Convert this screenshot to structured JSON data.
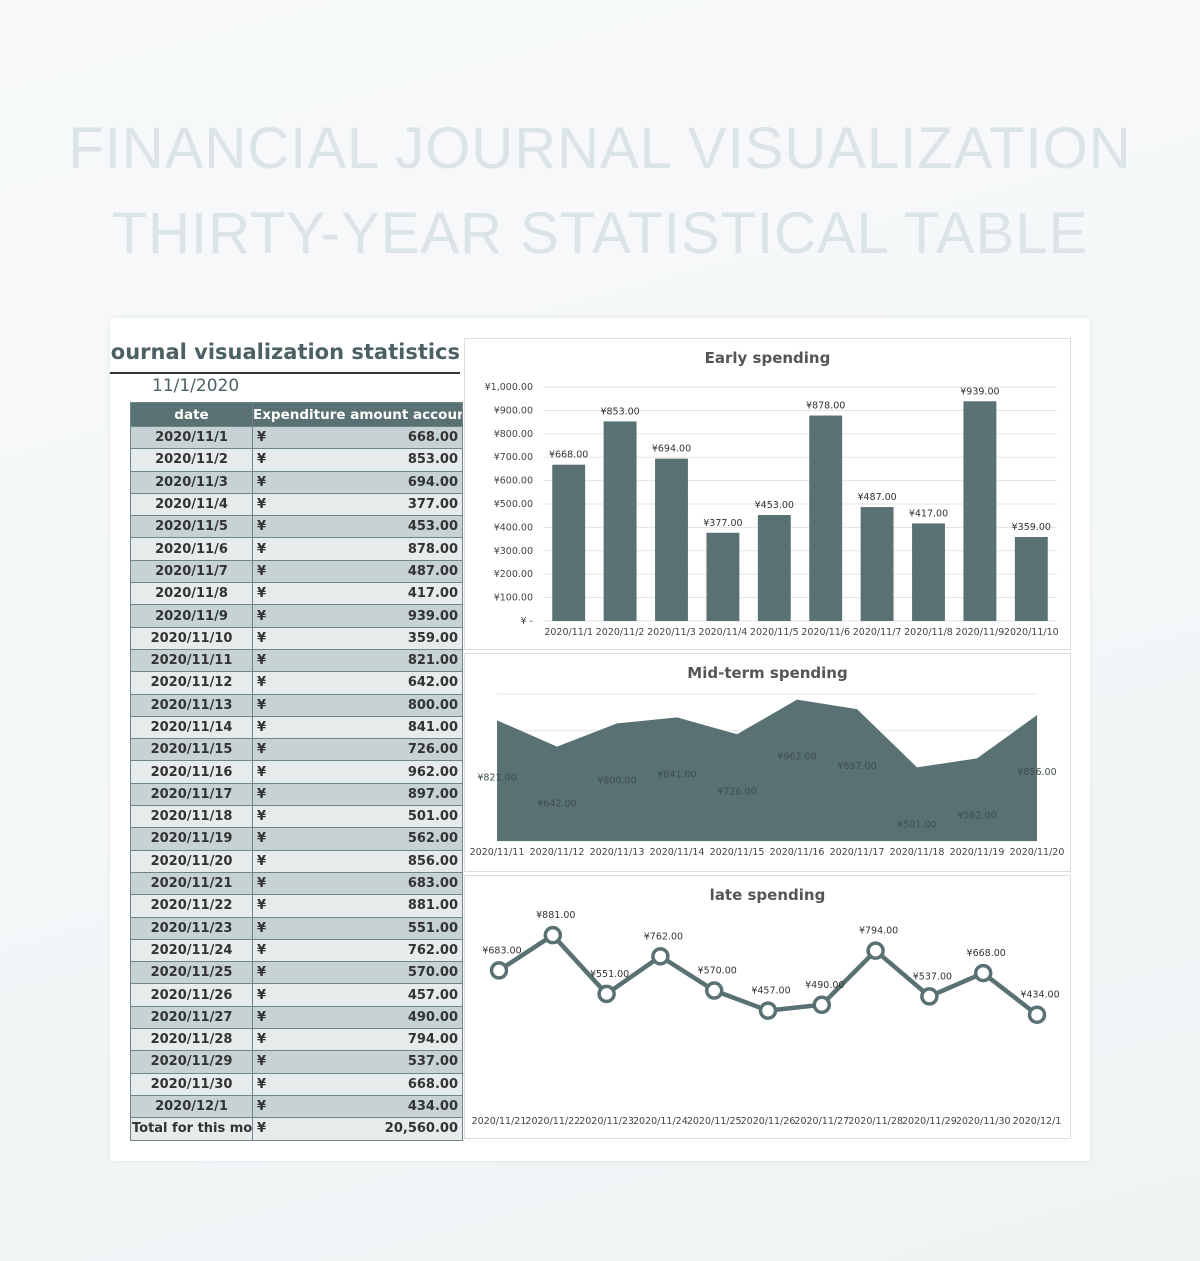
{
  "hero": {
    "line1": "FINANCIAL JOURNAL VISUALIZATION",
    "line2": "THIRTY-YEAR STATISTICAL TABLE"
  },
  "sheet": {
    "title": "Financial journal visualization statistics",
    "date": "11/1/2020",
    "col_date": "date",
    "col_amount": "Expenditure amount accounting",
    "currency": "¥",
    "rows": [
      {
        "date": "2020/11/1",
        "amount": "668.00"
      },
      {
        "date": "2020/11/2",
        "amount": "853.00"
      },
      {
        "date": "2020/11/3",
        "amount": "694.00"
      },
      {
        "date": "2020/11/4",
        "amount": "377.00"
      },
      {
        "date": "2020/11/5",
        "amount": "453.00"
      },
      {
        "date": "2020/11/6",
        "amount": "878.00"
      },
      {
        "date": "2020/11/7",
        "amount": "487.00"
      },
      {
        "date": "2020/11/8",
        "amount": "417.00"
      },
      {
        "date": "2020/11/9",
        "amount": "939.00"
      },
      {
        "date": "2020/11/10",
        "amount": "359.00"
      },
      {
        "date": "2020/11/11",
        "amount": "821.00"
      },
      {
        "date": "2020/11/12",
        "amount": "642.00"
      },
      {
        "date": "2020/11/13",
        "amount": "800.00"
      },
      {
        "date": "2020/11/14",
        "amount": "841.00"
      },
      {
        "date": "2020/11/15",
        "amount": "726.00"
      },
      {
        "date": "2020/11/16",
        "amount": "962.00"
      },
      {
        "date": "2020/11/17",
        "amount": "897.00"
      },
      {
        "date": "2020/11/18",
        "amount": "501.00"
      },
      {
        "date": "2020/11/19",
        "amount": "562.00"
      },
      {
        "date": "2020/11/20",
        "amount": "856.00"
      },
      {
        "date": "2020/11/21",
        "amount": "683.00"
      },
      {
        "date": "2020/11/22",
        "amount": "881.00"
      },
      {
        "date": "2020/11/23",
        "amount": "551.00"
      },
      {
        "date": "2020/11/24",
        "amount": "762.00"
      },
      {
        "date": "2020/11/25",
        "amount": "570.00"
      },
      {
        "date": "2020/11/26",
        "amount": "457.00"
      },
      {
        "date": "2020/11/27",
        "amount": "490.00"
      },
      {
        "date": "2020/11/28",
        "amount": "794.00"
      },
      {
        "date": "2020/11/29",
        "amount": "537.00"
      },
      {
        "date": "2020/11/30",
        "amount": "668.00"
      },
      {
        "date": "2020/12/1",
        "amount": "434.00"
      }
    ],
    "total_label": "Total for this month",
    "total_amount": "20,560.00"
  },
  "colors": {
    "series": "#5a7173",
    "marker_fill": "#ffffff",
    "grid": "#e3e3e3",
    "header_bg": "#5a7173"
  },
  "chart_data": [
    {
      "type": "bar",
      "title": "Early spending",
      "categories": [
        "2020/11/1",
        "2020/11/2",
        "2020/11/3",
        "2020/11/4",
        "2020/11/5",
        "2020/11/6",
        "2020/11/7",
        "2020/11/8",
        "2020/11/9",
        "2020/11/10"
      ],
      "values": [
        668,
        853,
        694,
        377,
        453,
        878,
        487,
        417,
        939,
        359
      ],
      "data_labels": [
        "¥668.00",
        "¥853.00",
        "¥694.00",
        "¥377.00",
        "¥453.00",
        "¥878.00",
        "¥487.00",
        "¥417.00",
        "¥939.00",
        "¥359.00"
      ],
      "ylim": [
        0,
        1000
      ],
      "y_ticks": [
        "¥ -",
        "¥100.00",
        "¥200.00",
        "¥300.00",
        "¥400.00",
        "¥500.00",
        "¥600.00",
        "¥700.00",
        "¥800.00",
        "¥900.00",
        "¥1,000.00"
      ],
      "grid": true,
      "legend": "none"
    },
    {
      "type": "area",
      "title": "Mid-term spending",
      "categories": [
        "2020/11/11",
        "2020/11/12",
        "2020/11/13",
        "2020/11/14",
        "2020/11/15",
        "2020/11/16",
        "2020/11/17",
        "2020/11/18",
        "2020/11/19",
        "2020/11/20"
      ],
      "values": [
        821,
        642,
        800,
        841,
        726,
        962,
        897,
        501,
        562,
        856
      ],
      "data_labels": [
        "¥821.00",
        "¥642.00",
        "¥800.00",
        "¥841.00",
        "¥726.00",
        "¥962.00",
        "¥897.00",
        "¥501.00",
        "¥562.00",
        "¥856.00"
      ],
      "ylim": [
        0,
        1000
      ],
      "grid": true,
      "legend": "none"
    },
    {
      "type": "line",
      "title": "late spending",
      "categories": [
        "2020/11/21",
        "2020/11/22",
        "2020/11/23",
        "2020/11/24",
        "2020/11/25",
        "2020/11/26",
        "2020/11/27",
        "2020/11/28",
        "2020/11/29",
        "2020/11/30",
        "2020/12/1"
      ],
      "values": [
        683,
        881,
        551,
        762,
        570,
        457,
        490,
        794,
        537,
        668,
        434
      ],
      "data_labels": [
        "¥683.00",
        "¥881.00",
        "¥551.00",
        "¥762.00",
        "¥570.00",
        "¥457.00",
        "¥490.00",
        "¥794.00",
        "¥537.00",
        "¥668.00",
        "¥434.00"
      ],
      "ylim": [
        0,
        1000
      ],
      "grid": false,
      "legend": "none"
    }
  ]
}
